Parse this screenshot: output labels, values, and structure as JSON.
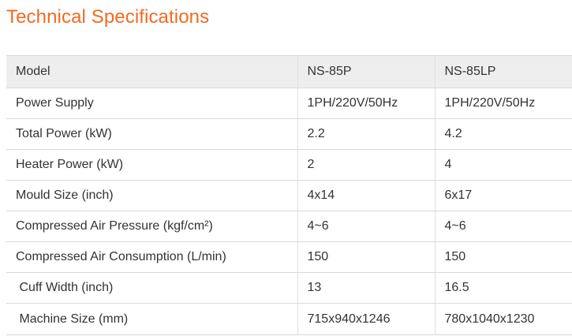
{
  "page": {
    "title": "Technical Specifications",
    "accent_color": "#f26a21"
  },
  "table": {
    "headers": [
      "Model",
      "NS-85P",
      "NS-85LP"
    ],
    "rows": [
      [
        "Power Supply",
        "1PH/220V/50Hz",
        "1PH/220V/50Hz"
      ],
      [
        "Total Power (kW)",
        "2.2",
        "4.2"
      ],
      [
        "Heater Power (kW)",
        "2",
        "4"
      ],
      [
        "Mould Size (inch)",
        "4x14",
        "6x17"
      ],
      [
        "Compressed Air Pressure (kgf/cm²)",
        "4~6",
        "4~6"
      ],
      [
        "Compressed Air Consumption (L/min)",
        "150",
        "150"
      ],
      [
        " Cuff Width (inch)",
        "13",
        "16.5"
      ],
      [
        " Machine Size (mm)",
        "715x940x1246",
        "780x1040x1230"
      ]
    ]
  }
}
